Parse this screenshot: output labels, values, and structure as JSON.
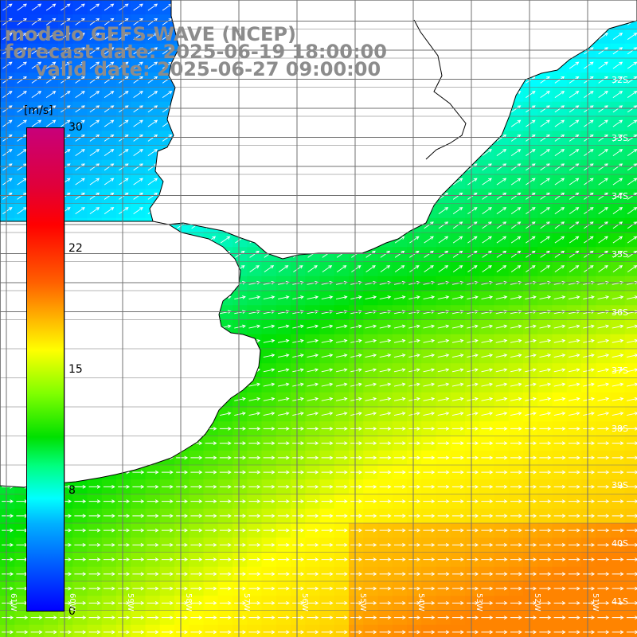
{
  "title": {
    "line1": "modelo GEFS-WAVE (NCEP)",
    "line2": "forecast date: 2025-06-19 18:00:00",
    "line3": "valid date: 2025-06-27 09:00:00"
  },
  "colorbar": {
    "unit": "[m/s]",
    "ticks": [
      "30",
      "22",
      "15",
      "8",
      "0"
    ],
    "colors": {
      "v0": "#0000ff",
      "v8": "#00ffff",
      "v12": "#00e000",
      "v15": "#ffff00",
      "v18": "#ffb000",
      "v22": "#ff0000",
      "v30": "#c8007a"
    }
  },
  "axes": {
    "lat_labels": [
      "32S",
      "33S",
      "34S",
      "35S",
      "36S",
      "37S",
      "38S",
      "39S",
      "40S",
      "41S"
    ],
    "lon_labels": [
      "61W",
      "60W",
      "59W",
      "58W",
      "57W",
      "56W",
      "55W",
      "54W",
      "53W",
      "52W",
      "51W"
    ]
  },
  "land_color": "#ffffff",
  "grid_color": "#707070",
  "arrow_color": "#ffffff"
}
